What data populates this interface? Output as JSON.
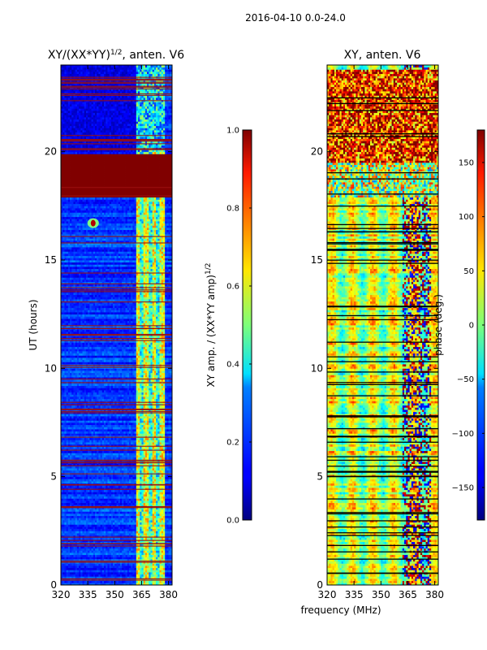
{
  "suptitle": "2016-04-10 0.0-24.0",
  "chart_data": [
    {
      "type": "heatmap",
      "title_main": "XY/(XX*YY)",
      "title_exp": "1/2",
      "title_suffix": ", anten. V6",
      "xlabel": "",
      "ylabel": "UT (hours)",
      "xlim": [
        320,
        382
      ],
      "ylim": [
        0,
        24
      ],
      "x_ticks": [
        320,
        335,
        350,
        365,
        380
      ],
      "y_ticks": [
        0,
        5,
        10,
        15,
        20
      ],
      "colorbar": {
        "label_main": "XY amp. / (XX*YY amp)",
        "label_exp": "1/2",
        "range": [
          0.0,
          1.0
        ],
        "ticks": [
          "0.0",
          "0.2",
          "0.4",
          "0.6",
          "0.8",
          "1.0"
        ],
        "tick_values": [
          0.0,
          0.2,
          0.4,
          0.6,
          0.8,
          1.0
        ]
      },
      "features": {
        "saturated_band_hours": [
          17.9,
          19.9
        ],
        "bright_channel_band_mhz": [
          362,
          378
        ],
        "hot_spot": {
          "freq_mhz": 338,
          "hour": 16.7
        }
      }
    },
    {
      "type": "heatmap",
      "title": "XY, anten. V6",
      "xlabel": "frequency (MHz)",
      "ylabel": "",
      "xlim": [
        320,
        382
      ],
      "ylim": [
        0,
        24
      ],
      "x_ticks": [
        320,
        335,
        350,
        365,
        380
      ],
      "y_ticks": [
        0,
        5,
        10,
        15,
        20
      ],
      "colorbar": {
        "label": "phase (deg.)",
        "range": [
          -180,
          180
        ],
        "ticks": [
          "150",
          "100",
          "50",
          "0",
          "−50",
          "−100",
          "−150"
        ],
        "tick_values": [
          150,
          100,
          50,
          0,
          -50,
          -100,
          -150
        ]
      },
      "features": {
        "noisy_band_hours": [
          17.9,
          23.8
        ],
        "phase_wrap_channel_mhz": [
          362,
          378
        ]
      }
    }
  ],
  "colors": {
    "jet_low": "#00007f",
    "jet_high": "#7f0000",
    "flag_line_dark": "#000000",
    "flag_line_red": "#9a1010"
  }
}
